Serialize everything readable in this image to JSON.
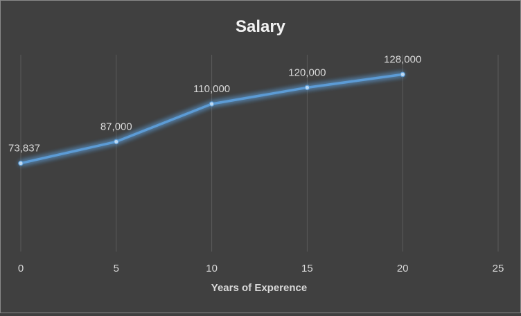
{
  "chart_data": {
    "type": "line",
    "title": "Salary",
    "xlabel": "Years of Experence",
    "ylabel": "",
    "x": [
      0,
      5,
      10,
      15,
      20
    ],
    "series": [
      {
        "values": [
          73837,
          87000,
          110000,
          120000,
          128000
        ]
      }
    ],
    "data_labels": [
      "73,837",
      "87,000",
      "110,000",
      "120,000",
      "128,000"
    ],
    "x_ticks": [
      0,
      5,
      10,
      15,
      20,
      25
    ],
    "xlim": [
      0,
      25
    ],
    "ylim": [
      20000,
      140000
    ],
    "grid": "vertical",
    "legend": "none",
    "colors": {
      "line": "#5b9bd5",
      "glow": "#4a90d9",
      "background": "#404040",
      "text": "#d9d9d9"
    }
  }
}
